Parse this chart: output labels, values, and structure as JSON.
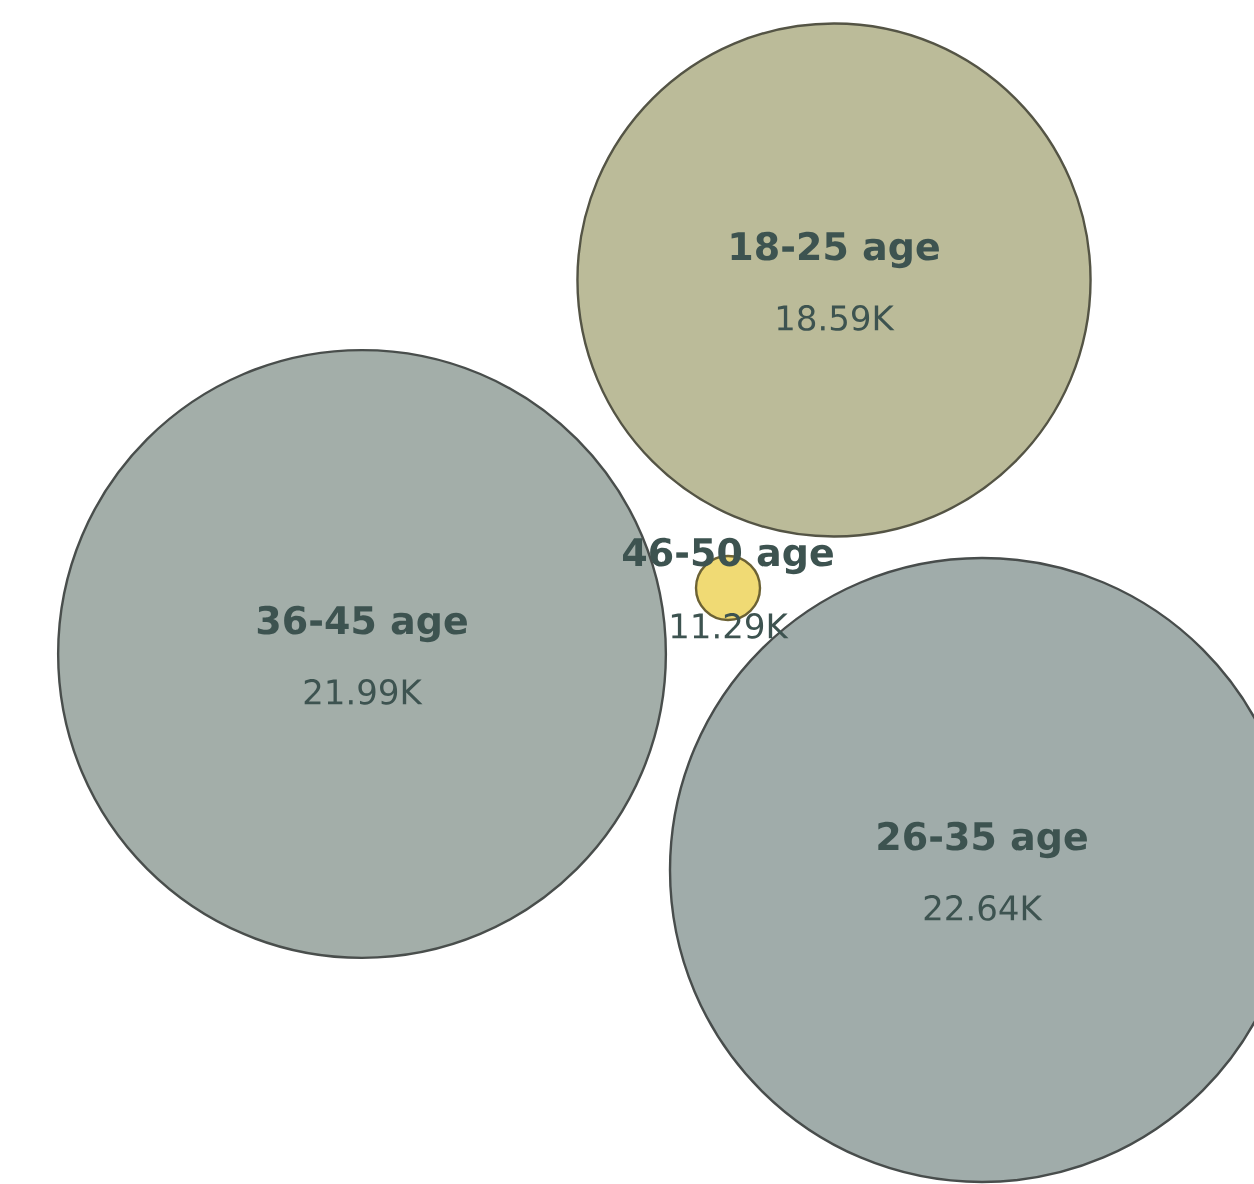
{
  "chart_data": {
    "type": "other",
    "categories": [
      "18-25 age",
      "36-45 age",
      "26-35 age",
      "46-50 age"
    ],
    "values": [
      18590,
      21990,
      22640,
      11290
    ],
    "value_labels": [
      "18.59K",
      "21.99K",
      "22.64K",
      "11.29K"
    ],
    "colors": [
      "#bbbb99",
      "#a3aea9",
      "#a0acaa",
      "#f0da74"
    ]
  }
}
